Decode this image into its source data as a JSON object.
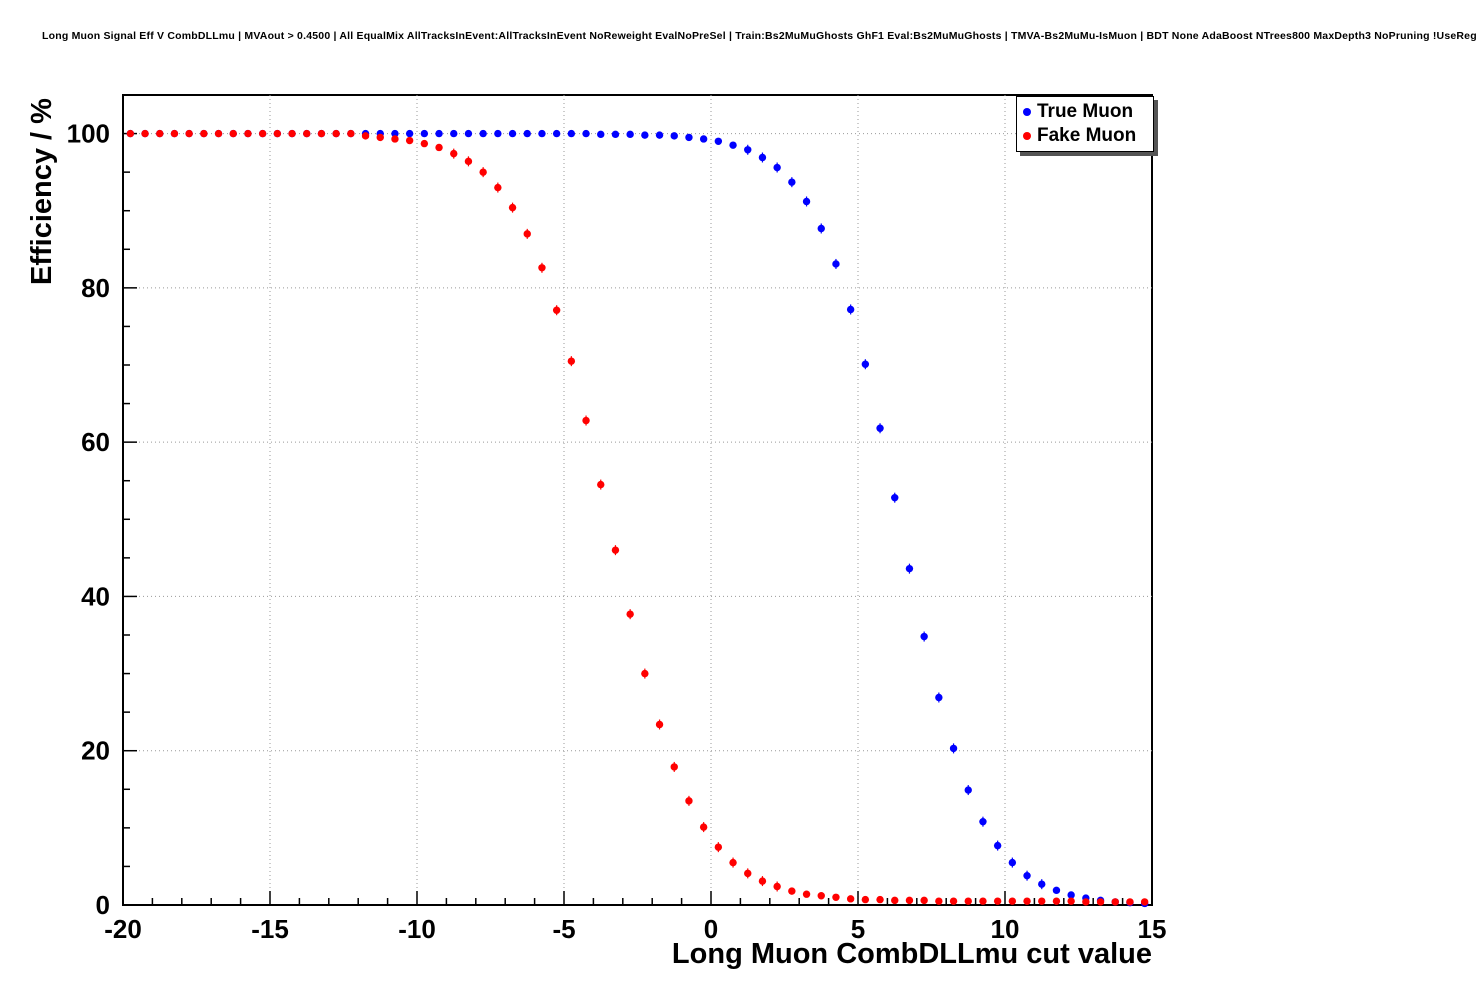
{
  "header": {
    "title": "Long Muon Signal Eff V CombDLLmu | MVAout > 0.4500 | All EqualMix AllTracksInEvent:AllTracksInEvent NoReweight EvalNoPreSel | Train:Bs2MuMuGhosts GhF1 Eval:Bs2MuMuGhosts | TMVA-Bs2MuMu-IsMuon | BDT None AdaBoost NTrees800 MaxDepth3 NoPruning !UseReg"
  },
  "chart_data": {
    "type": "scatter",
    "title": "",
    "xlabel": "Long Muon CombDLLmu cut value",
    "ylabel": "Efficiency / %",
    "xlim": [
      -20,
      15
    ],
    "ylim": [
      0,
      105
    ],
    "x_ticks": [
      -20,
      -15,
      -10,
      -5,
      0,
      5,
      10,
      15
    ],
    "y_ticks": [
      0,
      20,
      40,
      60,
      80,
      100
    ],
    "grid": true,
    "marker": "filled-circle",
    "colors": {
      "frame": "#000000",
      "gridline": "#999999",
      "background": "#ffffff"
    },
    "legend": {
      "position": "top-right",
      "entries": [
        {
          "label": "True Muon",
          "color": "#0000ff"
        },
        {
          "label": "Fake Muon",
          "color": "#ff0000"
        }
      ]
    },
    "x": [
      -19.75,
      -19.25,
      -18.75,
      -18.25,
      -17.75,
      -17.25,
      -16.75,
      -16.25,
      -15.75,
      -15.25,
      -14.75,
      -14.25,
      -13.75,
      -13.25,
      -12.75,
      -12.25,
      -11.75,
      -11.25,
      -10.75,
      -10.25,
      -9.75,
      -9.25,
      -8.75,
      -8.25,
      -7.75,
      -7.25,
      -6.75,
      -6.25,
      -5.75,
      -5.25,
      -4.75,
      -4.25,
      -3.75,
      -3.25,
      -2.75,
      -2.25,
      -1.75,
      -1.25,
      -0.75,
      -0.25,
      0.25,
      0.75,
      1.25,
      1.75,
      2.25,
      2.75,
      3.25,
      3.75,
      4.25,
      4.75,
      5.25,
      5.75,
      6.25,
      6.75,
      7.25,
      7.75,
      8.25,
      8.75,
      9.25,
      9.75,
      10.25,
      10.75,
      11.25,
      11.75,
      12.25,
      12.75,
      13.25,
      13.75,
      14.25,
      14.75
    ],
    "series": [
      {
        "name": "True Muon",
        "color": "#0000ff",
        "values": [
          100,
          100,
          100,
          100,
          100,
          100,
          100,
          100,
          100,
          100,
          100,
          100,
          100,
          100,
          100,
          100,
          100,
          100,
          100,
          100,
          100,
          100,
          100,
          100,
          100,
          100,
          100,
          100,
          100,
          100,
          100,
          100,
          99.9,
          99.9,
          99.9,
          99.8,
          99.8,
          99.7,
          99.5,
          99.3,
          99.0,
          98.5,
          97.9,
          96.9,
          95.6,
          93.7,
          91.2,
          87.7,
          83.1,
          77.2,
          70.1,
          61.8,
          52.8,
          43.6,
          34.8,
          26.9,
          20.3,
          14.9,
          10.8,
          7.7,
          5.5,
          3.8,
          2.7,
          1.9,
          1.3,
          0.9,
          0.6,
          0.4,
          0.3,
          0.2
        ]
      },
      {
        "name": "Fake Muon",
        "color": "#ff0000",
        "values": [
          100,
          100,
          100,
          100,
          100,
          100,
          100,
          100,
          100,
          100,
          100,
          100,
          100,
          100,
          100,
          100,
          99.7,
          99.5,
          99.3,
          99.1,
          98.7,
          98.2,
          97.4,
          96.4,
          95.0,
          93.0,
          90.4,
          87.0,
          82.6,
          77.1,
          70.5,
          62.8,
          54.5,
          46.0,
          37.7,
          30.0,
          23.4,
          17.9,
          13.5,
          10.1,
          7.5,
          5.5,
          4.1,
          3.1,
          2.4,
          1.8,
          1.4,
          1.2,
          1.0,
          0.8,
          0.7,
          0.7,
          0.6,
          0.6,
          0.6,
          0.5,
          0.5,
          0.5,
          0.5,
          0.5,
          0.5,
          0.5,
          0.5,
          0.5,
          0.5,
          0.4,
          0.4,
          0.4,
          0.4,
          0.4
        ]
      }
    ]
  }
}
